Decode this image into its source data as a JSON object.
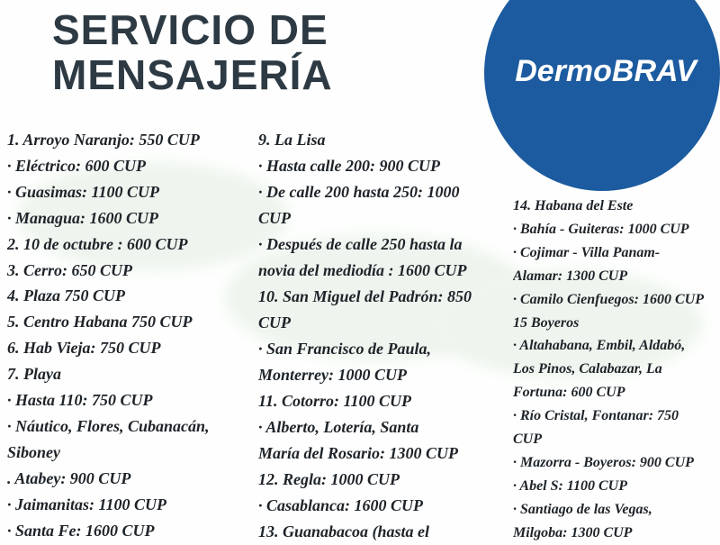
{
  "header": {
    "title_lines": [
      "SERVICIO DE",
      "MENSAJERÍA"
    ],
    "logo": "DermoBRAV"
  },
  "columns": [
    {
      "lines": [
        "1. Arroyo Naranjo: 550 CUP",
        "·  Eléctrico: 600 CUP",
        "· Guasimas: 1100 CUP",
        "· Managua: 1600 CUP",
        "2. 10 de octubre : 600 CUP",
        "3. Cerro: 650 CUP",
        "4. Plaza 750 CUP",
        "5. Centro Habana 750 CUP",
        "6. Hab Vieja: 750 CUP",
        "7. Playa",
        "· Hasta 110: 750 CUP",
        "· Náutico, Flores, Cubanacán,",
        "Siboney",
        ". Atabey: 900 CUP",
        "· Jaimanitas: 1100 CUP",
        "· Santa Fe: 1600 CUP"
      ]
    },
    {
      "lines": [
        "9. La Lisa",
        "· Hasta calle 200: 900 CUP",
        "· De calle 200 hasta 250: 1000",
        "CUP",
        "· Después de calle 250 hasta la",
        "novia del mediodía : 1600 CUP",
        "10. San Miguel del Padrón: 850",
        "CUP",
        "· San Francisco de Paula,",
        "Monterrey: 1000 CUP",
        "11. Cotorro: 1100 CUP",
        "· Alberto, Lotería, Santa",
        "María del Rosario: 1300 CUP",
        "12. Regla: 1000 CUP",
        "· Casablanca: 1600 CUP",
        "13. Guanabacoa (hasta el"
      ]
    },
    {
      "lines": [
        "14. Habana del Este",
        "· Bahía - Guiteras: 1000 CUP",
        "· Cojimar - Villa Panam-",
        "Alamar: 1300 CUP",
        "· Camilo Cienfuegos: 1600 CUP",
        "15  Boyeros",
        "· Altahabana, Embil, Aldabó,",
        "Los Pinos, Calabazar, La",
        "Fortuna: 600 CUP",
        "· Río Cristal, Fontanar: 750",
        "CUP",
        "· Mazorra - Boyeros: 900 CUP",
        "· Abel S: 1100 CUP",
        "· Santiago de las Vegas,",
        "Milgoba: 1300 CUP"
      ]
    }
  ]
}
